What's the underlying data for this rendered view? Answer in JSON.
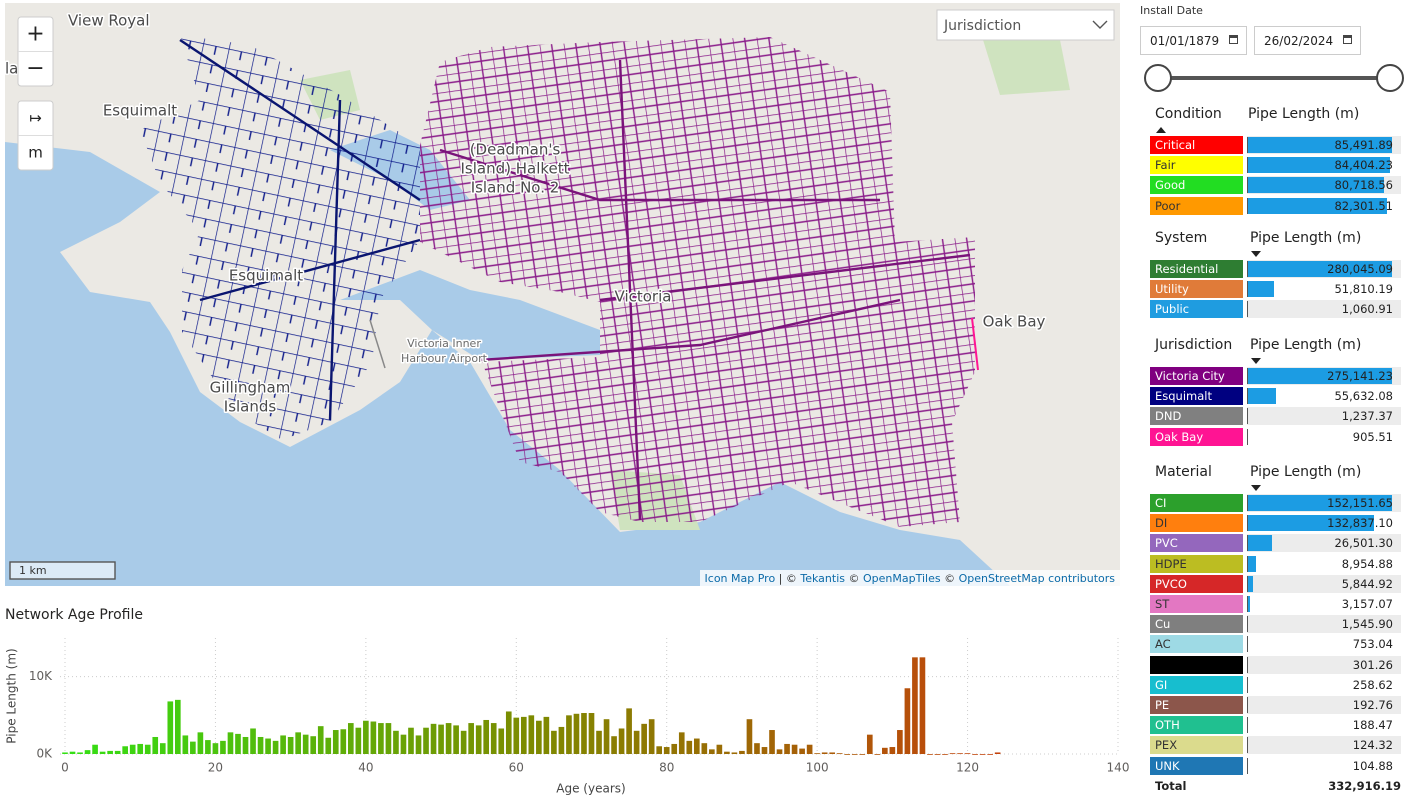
{
  "install_date": {
    "label": "Install Date",
    "from": "01/01/1879",
    "to": "26/02/2024"
  },
  "map": {
    "dropdown": "Jurisdiction",
    "controls": [
      "+",
      "−",
      "↦",
      "m"
    ],
    "scale": "1 km",
    "labels": [
      [
        "View Royal"
      ],
      [
        "la"
      ],
      [
        "Esquimalt"
      ],
      [
        "(Deadman's",
        "Island) Halkett",
        "Island No. 2"
      ],
      [
        "Esquimalt"
      ],
      [
        "Victoria"
      ],
      [
        "Oak Bay"
      ],
      [
        "Victoria Inner",
        "Harbour Airport"
      ],
      [
        "Gillingham",
        "Islands"
      ]
    ],
    "attribution": [
      "Icon Map Pro",
      " | © ",
      "Tekantis",
      " © ",
      "OpenMapTiles",
      " © ",
      "OpenStreetMap contributors"
    ]
  },
  "tables": [
    {
      "header": "Condition",
      "value_header": "Pipe Length (m)",
      "rows": [
        {
          "name": "Critical",
          "color": "#ff0000",
          "value": 85491.89,
          "label": "85,491.89"
        },
        {
          "name": "Fair",
          "color": "#ffff00",
          "value": 84404.23,
          "label": "84,404.23"
        },
        {
          "name": "Good",
          "color": "#22dd22",
          "value": 80718.56,
          "label": "80,718.56"
        },
        {
          "name": "Poor",
          "color": "#ff9900",
          "value": 82301.51,
          "label": "82,301.51"
        }
      ]
    },
    {
      "header": "System",
      "value_header": "Pipe Length (m)",
      "rows": [
        {
          "name": "Residential",
          "color": "#2e7d32",
          "value": 280045.09,
          "label": "280,045.09"
        },
        {
          "name": "Utility",
          "color": "#e07b39",
          "value": 51810.19,
          "label": "51,810.19"
        },
        {
          "name": "Public",
          "color": "#1f9ce0",
          "value": 1060.91,
          "label": "1,060.91"
        }
      ]
    },
    {
      "header": "Jurisdiction",
      "value_header": "Pipe Length (m)",
      "rows": [
        {
          "name": "Victoria City",
          "color": "#800080",
          "value": 275141.23,
          "label": "275,141.23"
        },
        {
          "name": "Esquimalt",
          "color": "#000080",
          "value": 55632.08,
          "label": "55,632.08"
        },
        {
          "name": "DND",
          "color": "#808080",
          "value": 1237.37,
          "label": "1,237.37"
        },
        {
          "name": "Oak Bay",
          "color": "#ff1493",
          "value": 905.51,
          "label": "905.51"
        }
      ]
    },
    {
      "header": "Material",
      "value_header": "Pipe Length (m)",
      "rows": [
        {
          "name": "CI",
          "color": "#2ca02c",
          "value": 152151.65,
          "label": "152,151.65"
        },
        {
          "name": "DI",
          "color": "#ff7f0e",
          "value": 132837.1,
          "label": "132,837.10"
        },
        {
          "name": "PVC",
          "color": "#9467bd",
          "value": 26501.3,
          "label": "26,501.30"
        },
        {
          "name": "HDPE",
          "color": "#bcbd22",
          "value": 8954.88,
          "label": "8,954.88"
        },
        {
          "name": "PVCO",
          "color": "#d62728",
          "value": 5844.92,
          "label": "5,844.92"
        },
        {
          "name": "ST",
          "color": "#e377c2",
          "value": 3157.07,
          "label": "3,157.07"
        },
        {
          "name": "Cu",
          "color": "#7f7f7f",
          "value": 1545.9,
          "label": "1,545.90"
        },
        {
          "name": "AC",
          "color": "#9edae5",
          "value": 753.04,
          "label": "753.04"
        },
        {
          "name": null,
          "color": "#000000",
          "value": 301.26,
          "label": "301.26"
        },
        {
          "name": "GI",
          "color": "#17becf",
          "value": 258.62,
          "label": "258.62"
        },
        {
          "name": "PE",
          "color": "#8c564b",
          "value": 192.76,
          "label": "192.76"
        },
        {
          "name": "OTH",
          "color": "#20c090",
          "value": 188.47,
          "label": "188.47"
        },
        {
          "name": "PEX",
          "color": "#dbdb8d",
          "value": 124.32,
          "label": "124.32"
        },
        {
          "name": "UNK",
          "color": "#1f77b4",
          "value": 104.88,
          "label": "104.88"
        }
      ]
    }
  ],
  "total": {
    "label": "Total",
    "value": "332,916.19"
  },
  "chart_data": {
    "type": "bar",
    "title": "Network Age Profile",
    "x_label": "Age (years)",
    "y_label": "Pipe Length (m)",
    "x": [
      0,
      1,
      2,
      3,
      4,
      5,
      6,
      7,
      8,
      9,
      10,
      11,
      12,
      13,
      14,
      15,
      16,
      17,
      18,
      19,
      20,
      21,
      22,
      23,
      24,
      25,
      26,
      27,
      28,
      29,
      30,
      31,
      32,
      33,
      34,
      35,
      36,
      37,
      38,
      39,
      40,
      41,
      42,
      43,
      44,
      45,
      46,
      47,
      48,
      49,
      50,
      51,
      52,
      53,
      54,
      55,
      56,
      57,
      58,
      59,
      60,
      61,
      62,
      63,
      64,
      65,
      66,
      67,
      68,
      69,
      70,
      71,
      72,
      73,
      74,
      75,
      76,
      77,
      78,
      79,
      80,
      81,
      82,
      83,
      84,
      85,
      86,
      87,
      88,
      89,
      90,
      91,
      92,
      93,
      94,
      95,
      96,
      97,
      98,
      99,
      100,
      101,
      102,
      103,
      104,
      105,
      106,
      107,
      108,
      109,
      110,
      111,
      112,
      113,
      114,
      115,
      116,
      117,
      118,
      119,
      120,
      121,
      122,
      123,
      124
    ],
    "values": [
      200,
      300,
      200,
      500,
      1200,
      300,
      400,
      400,
      1000,
      1200,
      1300,
      1200,
      2200,
      1400,
      6800,
      7000,
      2400,
      1600,
      2800,
      1800,
      1400,
      1700,
      2800,
      2600,
      2200,
      3300,
      2200,
      2000,
      1700,
      2400,
      2200,
      2800,
      2500,
      2300,
      3600,
      2100,
      3100,
      3200,
      4000,
      3400,
      4300,
      4200,
      4000,
      4000,
      3000,
      2500,
      3400,
      2400,
      3400,
      3900,
      3800,
      4000,
      3700,
      3000,
      4000,
      3700,
      4400,
      4000,
      3300,
      5500,
      4700,
      4800,
      5000,
      4300,
      4800,
      3000,
      3500,
      5000,
      5200,
      5300,
      5300,
      3000,
      4500,
      2300,
      3300,
      5900,
      3000,
      3900,
      4500,
      1000,
      900,
      1300,
      2800,
      1700,
      2000,
      1400,
      600,
      1200,
      300,
      200,
      400,
      4500,
      1400,
      900,
      3100,
      600,
      1300,
      1200,
      700,
      1200,
      100,
      200,
      200,
      100,
      0,
      0,
      0,
      2500,
      0,
      800,
      900,
      3100,
      8500,
      12500,
      12500,
      0,
      0,
      0,
      100,
      100,
      100,
      0,
      0,
      0,
      200
    ],
    "colors": [
      "#33e014",
      "#7d8a00",
      "#c4420c"
    ],
    "xlim": [
      0,
      140
    ],
    "xticks": [
      0,
      20,
      40,
      60,
      80,
      100,
      120,
      140
    ],
    "ylim": [
      0,
      15000
    ],
    "yticks": [
      {
        "value": 0,
        "label": "0K"
      },
      {
        "value": 10000,
        "label": "10K"
      }
    ],
    "grid": true
  }
}
